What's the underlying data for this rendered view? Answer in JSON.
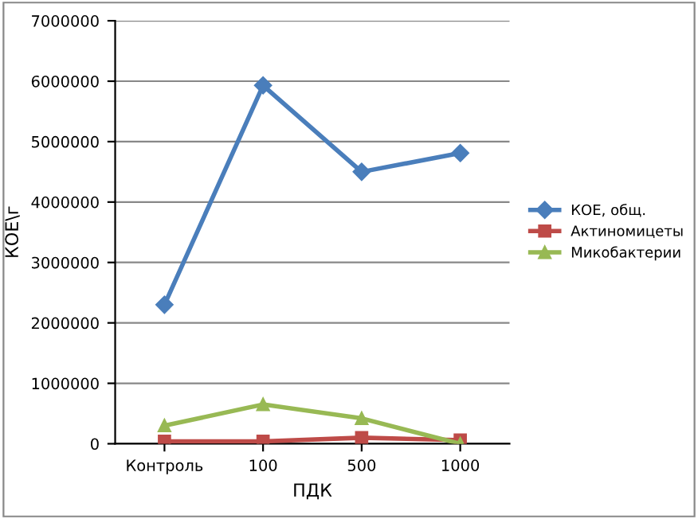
{
  "chart_data": {
    "type": "line",
    "xlabel": "ПДК",
    "ylabel": "КОЕ\\г",
    "categories": [
      "Контроль",
      "100",
      "500",
      "1000"
    ],
    "series": [
      {
        "name": "КОЕ, общ.",
        "color": "#4a7ebb",
        "marker": "diamond",
        "values": [
          2300000,
          5930000,
          4500000,
          4810000
        ]
      },
      {
        "name": "Актиномицеты",
        "color": "#be4b48",
        "marker": "square",
        "values": [
          40000,
          40000,
          100000,
          60000
        ]
      },
      {
        "name": "Микобактерии",
        "color": "#98b954",
        "marker": "triangle",
        "values": [
          300000,
          650000,
          420000,
          0
        ]
      }
    ],
    "ylim": [
      0,
      7000000
    ],
    "yticks": [
      0,
      1000000,
      2000000,
      3000000,
      4000000,
      5000000,
      6000000,
      7000000
    ],
    "grid": "y",
    "legend": "right",
    "line_style": "solid"
  }
}
